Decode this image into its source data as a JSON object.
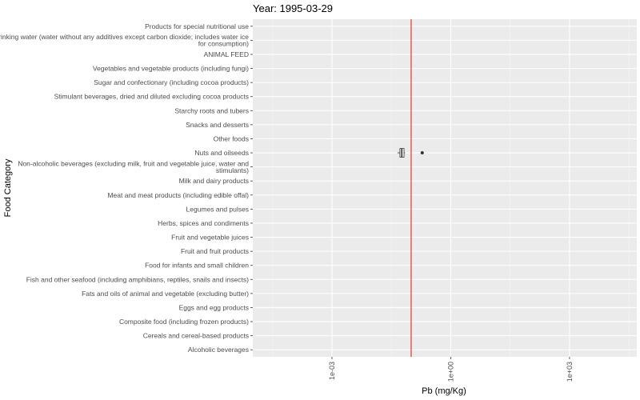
{
  "chart_data": {
    "type": "boxplot",
    "title": "Year: 1995-03-29",
    "xlabel": "Pb (mg/Kg)",
    "ylabel": "Food Category",
    "x_scale": "log10",
    "xlim": [
      1e-05,
      50000
    ],
    "x_ticks": [
      0.001,
      1,
      1000
    ],
    "x_tick_labels": [
      "1e-03",
      "1e+00",
      "1e+03"
    ],
    "grid": true,
    "categories": [
      "Alcoholic beverages",
      "Cereals and cereal-based products",
      "Composite food (including frozen products)",
      "Eggs and egg products",
      "Fats and oils of animal and vegetable (excluding butter)",
      "Fish and other seafood (including amphibians, reptiles, snails and insects)",
      "Food for infants and small children",
      "Fruit and fruit products",
      "Fruit and vegetable juices",
      "Herbs, spices and condiments",
      "Legumes and pulses",
      "Meat and meat products (including edible offal)",
      "Milk and dairy products",
      "Non-alcoholic beverages (excluding milk, fruit and vegetable juice, water and stimulants)",
      "Nuts and oilseeds",
      "Other foods",
      "Snacks and desserts",
      "Starchy roots and tubers",
      "Stimulant beverages, dried and diluted excluding cocoa products",
      "Sugar and confectionary (including cocoa products)",
      "Vegetables and vegetable products (including fungi)",
      "ANIMAL FEED",
      "Drinking water (water without any additives except carbon dioxide; includes water ice for consumption)",
      "Products for special nutritional use"
    ],
    "boxes": [
      {
        "category": "Nuts and oilseeds",
        "whisker_low": 0.045,
        "q1": 0.052,
        "median": 0.058,
        "q3": 0.066,
        "whisker_high": 0.07,
        "outliers": [
          0.19
        ]
      }
    ],
    "reference_line": {
      "x": 0.1,
      "color": "#e8413a"
    },
    "colors": {
      "panel": "#ebebeb",
      "grid_major": "#ffffff",
      "grid_minor": "#f5f5f5",
      "box_stroke": "#333333",
      "reference": "#e8413a"
    }
  }
}
